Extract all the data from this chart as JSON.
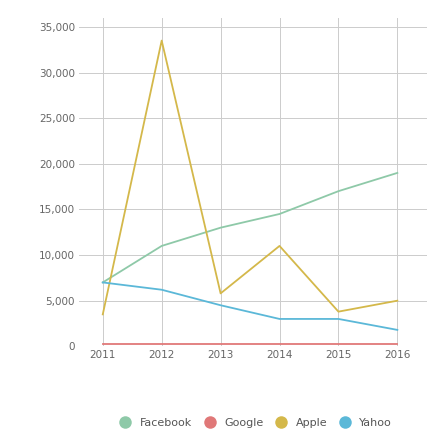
{
  "years": [
    2011,
    2012,
    2013,
    2014,
    2015,
    2016
  ],
  "facebook": [
    7000,
    11000,
    13000,
    14500,
    17000,
    19000
  ],
  "google": [
    200,
    200,
    200,
    200,
    200,
    200
  ],
  "apple": [
    3500,
    33500,
    5800,
    11000,
    3800,
    5000
  ],
  "yahoo": [
    7000,
    6200,
    4500,
    3000,
    3000,
    1800
  ],
  "colors": {
    "facebook": "#8ec9a8",
    "google": "#e07878",
    "apple": "#d4b84a",
    "yahoo": "#5bb8d8"
  },
  "legend_labels": [
    "Facebook",
    "Google",
    "Apple",
    "Yahoo"
  ],
  "legend_marker_colors": [
    "#8ec9a8",
    "#e07878",
    "#d4b84a",
    "#5bb8d8"
  ],
  "ylim": [
    0,
    36000
  ],
  "yticks": [
    0,
    5000,
    10000,
    15000,
    20000,
    25000,
    30000,
    35000
  ],
  "ytick_labels": [
    "0",
    "5,000",
    "10,000",
    "15,000",
    "20,000",
    "25,000",
    "30,000",
    "35,000"
  ],
  "background_color": "#ffffff",
  "grid_color": "#cccccc",
  "line_width": 1.3
}
